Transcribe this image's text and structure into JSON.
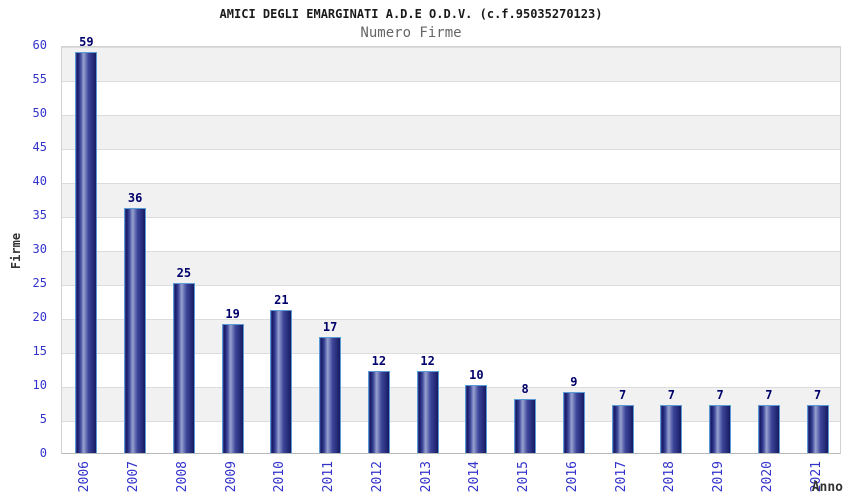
{
  "chart_data": {
    "type": "bar",
    "title": "AMICI DEGLI EMARGINATI A.D.E O.D.V. (c.f.95035270123)",
    "subtitle": "Numero Firme",
    "xlabel": "Anno",
    "ylabel": "Firme",
    "categories": [
      "2006",
      "2007",
      "2008",
      "2009",
      "2010",
      "2011",
      "2012",
      "2013",
      "2014",
      "2015",
      "2016",
      "2017",
      "2018",
      "2019",
      "2020",
      "2021"
    ],
    "values": [
      59,
      36,
      25,
      19,
      21,
      17,
      12,
      12,
      10,
      8,
      9,
      7,
      7,
      7,
      7,
      7
    ],
    "ylim": [
      0,
      60
    ],
    "yticks": [
      0,
      5,
      10,
      15,
      20,
      25,
      30,
      35,
      40,
      45,
      50,
      55,
      60
    ],
    "legend": "none",
    "grid": "horizontal-bands-every-5",
    "colors": {
      "bar_dark": "#161a63",
      "bar_mid": "#3d479a",
      "bar_highlight": "#98a2d0",
      "bar_border": "#5b9bd5",
      "axis_tick_label": "#3333cc",
      "value_label": "#00006b",
      "band_gray": "#f1f1f1",
      "gridline": "#dcdcdc",
      "title_color": "#1a1a1a",
      "subtitle_color": "#666666",
      "axis_title_color": "#333333",
      "background": "#ffffff"
    }
  }
}
